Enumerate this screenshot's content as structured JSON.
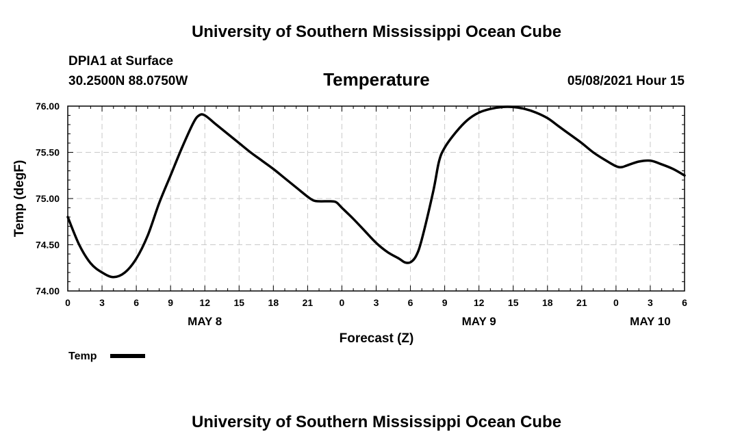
{
  "header": {
    "top_title": "University of Southern Mississippi Ocean Cube",
    "station": "DPIA1 at Surface",
    "coords": "30.2500N  88.0750W",
    "variable": "Temperature",
    "datetime": "05/08/2021 Hour 15",
    "bottom_title": "University of Southern Mississippi Ocean Cube"
  },
  "chart_data": {
    "type": "line",
    "title": "Temperature",
    "xlabel": "Forecast (Z)",
    "ylabel": "Temp (degF)",
    "x_unit": "forecast hour",
    "xlim": [
      0,
      54
    ],
    "ylim": [
      74.0,
      76.0
    ],
    "grid": true,
    "legend_position": "bottom-left",
    "x_ticks": [
      {
        "x": 0,
        "label": "0"
      },
      {
        "x": 3,
        "label": "3"
      },
      {
        "x": 6,
        "label": "6"
      },
      {
        "x": 9,
        "label": "9"
      },
      {
        "x": 12,
        "label": "12"
      },
      {
        "x": 15,
        "label": "15"
      },
      {
        "x": 18,
        "label": "18"
      },
      {
        "x": 21,
        "label": "21"
      },
      {
        "x": 24,
        "label": "0"
      },
      {
        "x": 27,
        "label": "3"
      },
      {
        "x": 30,
        "label": "6"
      },
      {
        "x": 33,
        "label": "9"
      },
      {
        "x": 36,
        "label": "12"
      },
      {
        "x": 39,
        "label": "15"
      },
      {
        "x": 42,
        "label": "18"
      },
      {
        "x": 45,
        "label": "21"
      },
      {
        "x": 48,
        "label": "0"
      },
      {
        "x": 51,
        "label": "3"
      },
      {
        "x": 54,
        "label": "6"
      }
    ],
    "y_ticks": [
      {
        "y": 74.0,
        "label": "74.00"
      },
      {
        "y": 74.5,
        "label": "74.50"
      },
      {
        "y": 75.0,
        "label": "75.00"
      },
      {
        "y": 75.5,
        "label": "75.50"
      },
      {
        "y": 76.0,
        "label": "76.00"
      }
    ],
    "day_labels": [
      {
        "x": 12,
        "label": "MAY 8"
      },
      {
        "x": 36,
        "label": "MAY 9"
      },
      {
        "x": 51,
        "label": "MAY 10"
      }
    ],
    "series": [
      {
        "name": "Temp",
        "color": "#000000",
        "x": [
          0,
          1,
          2,
          3,
          4,
          5,
          6,
          7,
          8,
          9,
          10,
          11,
          11.5,
          12,
          13,
          14,
          15,
          16,
          17,
          18,
          19,
          20,
          21,
          21.5,
          22,
          23,
          23.5,
          24,
          25,
          26,
          27,
          28,
          29,
          29.5,
          30,
          30.5,
          31,
          32,
          32.5,
          33,
          34,
          35,
          36,
          37,
          38,
          39,
          40,
          41,
          42,
          43,
          44,
          45,
          46,
          47,
          48,
          48.5,
          49,
          50,
          51,
          52,
          53,
          54
        ],
        "y": [
          74.8,
          74.5,
          74.3,
          74.2,
          74.15,
          74.2,
          74.35,
          74.6,
          74.95,
          75.25,
          75.55,
          75.82,
          75.9,
          75.9,
          75.8,
          75.7,
          75.6,
          75.5,
          75.41,
          75.32,
          75.22,
          75.12,
          75.02,
          74.98,
          74.97,
          74.97,
          74.96,
          74.9,
          74.78,
          74.65,
          74.52,
          74.42,
          74.35,
          74.31,
          74.31,
          74.38,
          74.56,
          75.08,
          75.4,
          75.55,
          75.72,
          75.85,
          75.93,
          75.97,
          75.99,
          75.99,
          75.97,
          75.93,
          75.87,
          75.78,
          75.69,
          75.6,
          75.5,
          75.42,
          75.35,
          75.34,
          75.36,
          75.4,
          75.41,
          75.37,
          75.32,
          75.25
        ]
      }
    ]
  }
}
